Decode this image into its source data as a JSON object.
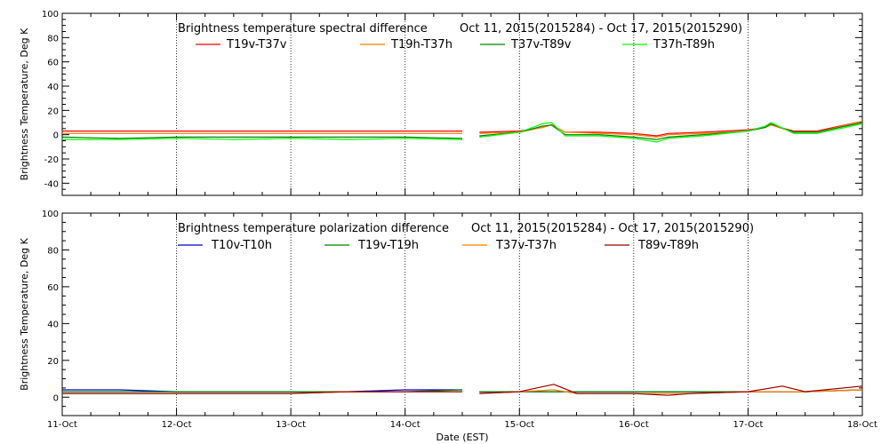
{
  "chart_data": [
    {
      "type": "line",
      "title": "Brightness temperature spectral difference",
      "date_range": "Oct 11, 2015(2015284) - Oct 17, 2015(2015290)",
      "ylabel": "Brightness Temperature, Deg K",
      "xlabel": "",
      "ylim": [
        -50,
        100
      ],
      "yticks": [
        -40,
        -20,
        0,
        20,
        40,
        60,
        80,
        100
      ],
      "xlim": [
        0,
        7
      ],
      "xtick_labels": [],
      "grid": "vertical dotted",
      "legend_placement": "top",
      "series": [
        {
          "name": "T19v-T37v",
          "color": "#ff0000",
          "x": [
            0,
            0.5,
            1,
            1.5,
            2,
            2.5,
            3,
            3.5,
            "gap",
            3.65,
            4.0,
            4.2,
            4.28,
            4.4,
            4.7,
            5.0,
            5.2,
            5.3,
            5.6,
            6.0,
            6.15,
            6.2,
            6.4,
            6.6,
            7.0
          ],
          "y": [
            3,
            3,
            3,
            3,
            3,
            3,
            3,
            3,
            null,
            2,
            3,
            6,
            8,
            2,
            2,
            1,
            -1,
            1,
            2,
            4,
            6,
            8,
            3,
            3,
            11
          ]
        },
        {
          "name": "T19h-T37h",
          "color": "#ff7f00",
          "x": [
            0,
            0.5,
            1,
            1.5,
            2,
            2.5,
            3,
            3.5,
            "gap",
            3.65,
            4.0,
            4.2,
            4.28,
            4.4,
            4.7,
            5.0,
            5.2,
            5.3,
            5.6,
            6.0,
            6.15,
            6.2,
            6.4,
            6.6,
            7.0
          ],
          "y": [
            1,
            1,
            1,
            1,
            1,
            1,
            1,
            1,
            null,
            1,
            2,
            6,
            8,
            2,
            1,
            0,
            -2,
            0,
            1,
            3,
            6,
            8,
            2,
            2,
            11
          ]
        },
        {
          "name": "T37v-T89v",
          "color": "#008000",
          "x": [
            0,
            0.5,
            1,
            1.5,
            2,
            2.5,
            3,
            3.5,
            "gap",
            3.65,
            4.0,
            4.2,
            4.28,
            4.4,
            4.7,
            5.0,
            5.2,
            5.3,
            5.6,
            6.0,
            6.15,
            6.2,
            6.4,
            6.6,
            7.0
          ],
          "y": [
            -2,
            -3,
            -2,
            -2,
            -2,
            -2,
            -2,
            -3,
            null,
            -1,
            2,
            7,
            8,
            0,
            0,
            -2,
            -4,
            -2,
            0,
            3,
            6,
            9,
            2,
            2,
            10
          ]
        },
        {
          "name": "T37h-T89h",
          "color": "#00ff00",
          "x": [
            0,
            0.5,
            1,
            1.5,
            2,
            2.5,
            3,
            3.5,
            "gap",
            3.65,
            4.0,
            4.2,
            4.28,
            4.4,
            4.7,
            5.0,
            5.2,
            5.3,
            5.6,
            6.0,
            6.15,
            6.2,
            6.4,
            6.6,
            7.0
          ],
          "y": [
            -4,
            -4,
            -3,
            -4,
            -3,
            -4,
            -3,
            -4,
            null,
            -2,
            2,
            9,
            10,
            -1,
            -1,
            -3,
            -6,
            -3,
            -1,
            3,
            7,
            10,
            1,
            1,
            9
          ]
        }
      ]
    },
    {
      "type": "line",
      "title": "Brightness temperature polarization difference",
      "date_range": "Oct 11, 2015(2015284) - Oct 17, 2015(2015290)",
      "ylabel": "Brightness Temperature, Deg K",
      "xlabel": "Date (EST)",
      "ylim": [
        -10,
        100
      ],
      "yticks": [
        0,
        20,
        40,
        60,
        80,
        100
      ],
      "xlim": [
        0,
        7
      ],
      "xtick_labels": [
        "11-Oct",
        "12-Oct",
        "13-Oct",
        "14-Oct",
        "15-Oct",
        "16-Oct",
        "17-Oct",
        "18-Oct"
      ],
      "grid": "vertical dotted",
      "legend_placement": "top",
      "series": [
        {
          "name": "T10v-T10h",
          "color": "#0000cc",
          "x": [
            0,
            0.5,
            1,
            1.5,
            2,
            2.5,
            3,
            3.5,
            "gap",
            3.65,
            4.0,
            4.3,
            4.5,
            5.0,
            5.5,
            6.0,
            6.5,
            7.0
          ],
          "y": [
            4,
            4,
            3,
            3,
            3,
            3,
            4,
            4,
            null,
            3,
            3,
            3,
            3,
            3,
            3,
            3,
            3,
            4
          ]
        },
        {
          "name": "T19v-T19h",
          "color": "#008000",
          "x": [
            0,
            0.5,
            1,
            1.5,
            2,
            2.5,
            3,
            3.5,
            "gap",
            3.65,
            4.0,
            4.3,
            4.5,
            5.0,
            5.5,
            6.0,
            6.5,
            7.0
          ],
          "y": [
            3,
            3,
            3,
            3,
            3,
            3,
            3,
            4,
            null,
            3,
            3,
            3,
            3,
            3,
            3,
            3,
            3,
            4
          ]
        },
        {
          "name": "T37v-T37h",
          "color": "#ff7f00",
          "x": [
            0,
            0.5,
            1,
            1.5,
            2,
            2.5,
            3,
            3.5,
            "gap",
            3.65,
            4.0,
            4.3,
            4.5,
            5.0,
            5.5,
            6.0,
            6.5,
            7.0
          ],
          "y": [
            2,
            2,
            2,
            2,
            2,
            3,
            3,
            3,
            null,
            2,
            3,
            4,
            2,
            2,
            2,
            3,
            3,
            4
          ]
        },
        {
          "name": "T89v-T89h",
          "color": "#990000",
          "x": [
            0,
            0.5,
            1,
            1.5,
            2,
            2.5,
            3,
            3.5,
            "gap",
            3.65,
            4.0,
            4.3,
            4.5,
            5.0,
            5.3,
            5.5,
            6.0,
            6.3,
            6.5,
            7.0
          ],
          "y": [
            2,
            2,
            2,
            2,
            2,
            3,
            3,
            3,
            null,
            2,
            3,
            7,
            2,
            2,
            1,
            2,
            3,
            6,
            3,
            6
          ]
        }
      ]
    }
  ]
}
